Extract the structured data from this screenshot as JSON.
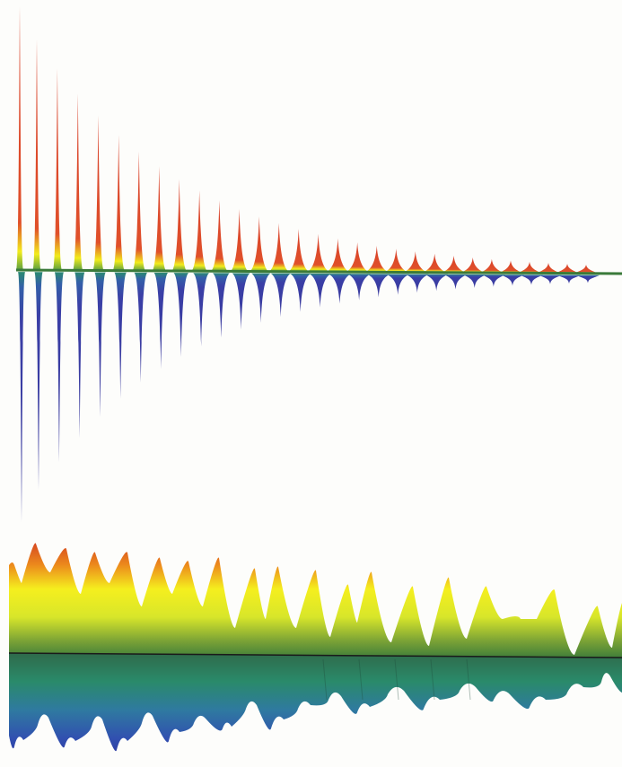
{
  "colors": {
    "background": "#fdfdfb",
    "positive_peak": "#d8402a",
    "positive_mid": "#f2ec1c",
    "negative_peak": "#3a3fa6",
    "negative_mid": "#2a7a62",
    "baseline": "#1a1a1a"
  },
  "top_pattern": {
    "description_free": true,
    "pulse_count": 30,
    "decay": "exponential"
  },
  "bottom_pattern": {
    "lobe_count": 19
  }
}
